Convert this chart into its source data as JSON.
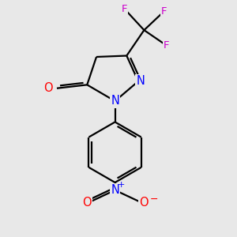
{
  "background_color": "#e8e8e8",
  "bond_color": "black",
  "atom_colors": {
    "N": "#0000ff",
    "O": "#ff0000",
    "F": "#cc00cc",
    "C": "black"
  },
  "bond_width": 1.6,
  "font_size_atoms": 10.5,
  "font_size_charge": 8,
  "figsize": [
    3.0,
    3.0
  ],
  "dpi": 100
}
